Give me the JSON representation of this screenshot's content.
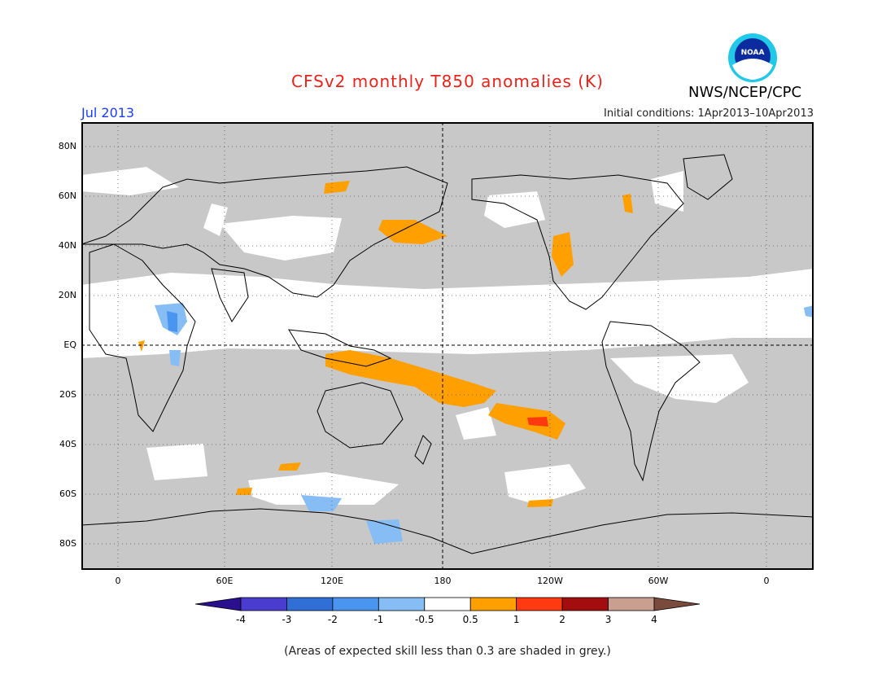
{
  "title": "CFSv2 monthly T850 anomalies (K)",
  "agency": "NWS/NCEP/CPC",
  "logo_text": "NOAA",
  "valid_month": "Jul 2013",
  "initial_conditions": "Initial conditions: 1Apr2013–10Apr2013",
  "lat_labels": [
    "80N",
    "60N",
    "40N",
    "20N",
    "EQ",
    "20S",
    "40S",
    "60S",
    "80S"
  ],
  "lon_labels": [
    "0",
    "60E",
    "120E",
    "180",
    "120W",
    "60W",
    "0"
  ],
  "colorbar": {
    "labels": [
      "-4",
      "-3",
      "-2",
      "-1",
      "-0.5",
      "0.5",
      "1",
      "2",
      "3",
      "4"
    ],
    "colors": [
      "#2a0f8f",
      "#4a3ccf",
      "#2f6fd6",
      "#4a95ef",
      "#86bdf5",
      "#ffffff",
      "#ff9f00",
      "#ff3a10",
      "#a30d0d",
      "#c9a090",
      "#7a4a3c"
    ]
  },
  "footnote": "(Areas of expected skill less than 0.3 are shaded in grey.)",
  "colors": {
    "skill_grey": "#c8c8c8",
    "land_outline": "#000000",
    "title": "#e8231b",
    "month": "#1a3cff"
  }
}
